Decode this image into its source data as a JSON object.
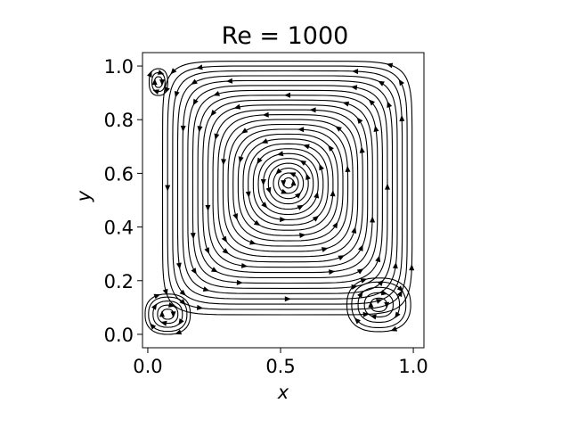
{
  "chart_data": {
    "type": "streamplot",
    "title": "Re = 1000",
    "xlabel": "x",
    "ylabel": "y",
    "xlim": [
      -0.02,
      1.04
    ],
    "ylim": [
      -0.05,
      1.05
    ],
    "x_ticks": [
      0.0,
      0.5,
      1.0
    ],
    "x_tick_labels": [
      "0.0",
      "0.5",
      "1.0"
    ],
    "y_ticks": [
      0.0,
      0.2,
      0.4,
      0.6,
      0.8,
      1.0
    ],
    "y_tick_labels": [
      "0.0",
      "0.2",
      "0.4",
      "0.6",
      "0.8",
      "1.0"
    ],
    "grid": false,
    "line_color": "#000000",
    "flow_direction": "clockwise",
    "vortices": [
      {
        "name": "primary",
        "center": [
          0.53,
          0.565
        ],
        "extent": [
          0.47,
          0.45
        ],
        "direction": "clockwise"
      },
      {
        "name": "bottom-left secondary",
        "center": [
          0.075,
          0.075
        ],
        "extent": [
          0.085,
          0.075
        ],
        "direction": "counterclockwise"
      },
      {
        "name": "bottom-right secondary",
        "center": [
          0.87,
          0.11
        ],
        "extent": [
          0.12,
          0.1
        ],
        "direction": "counterclockwise"
      },
      {
        "name": "top-left corner",
        "center": [
          0.04,
          0.94
        ],
        "extent": [
          0.035,
          0.05
        ],
        "direction": "counterclockwise"
      }
    ]
  }
}
